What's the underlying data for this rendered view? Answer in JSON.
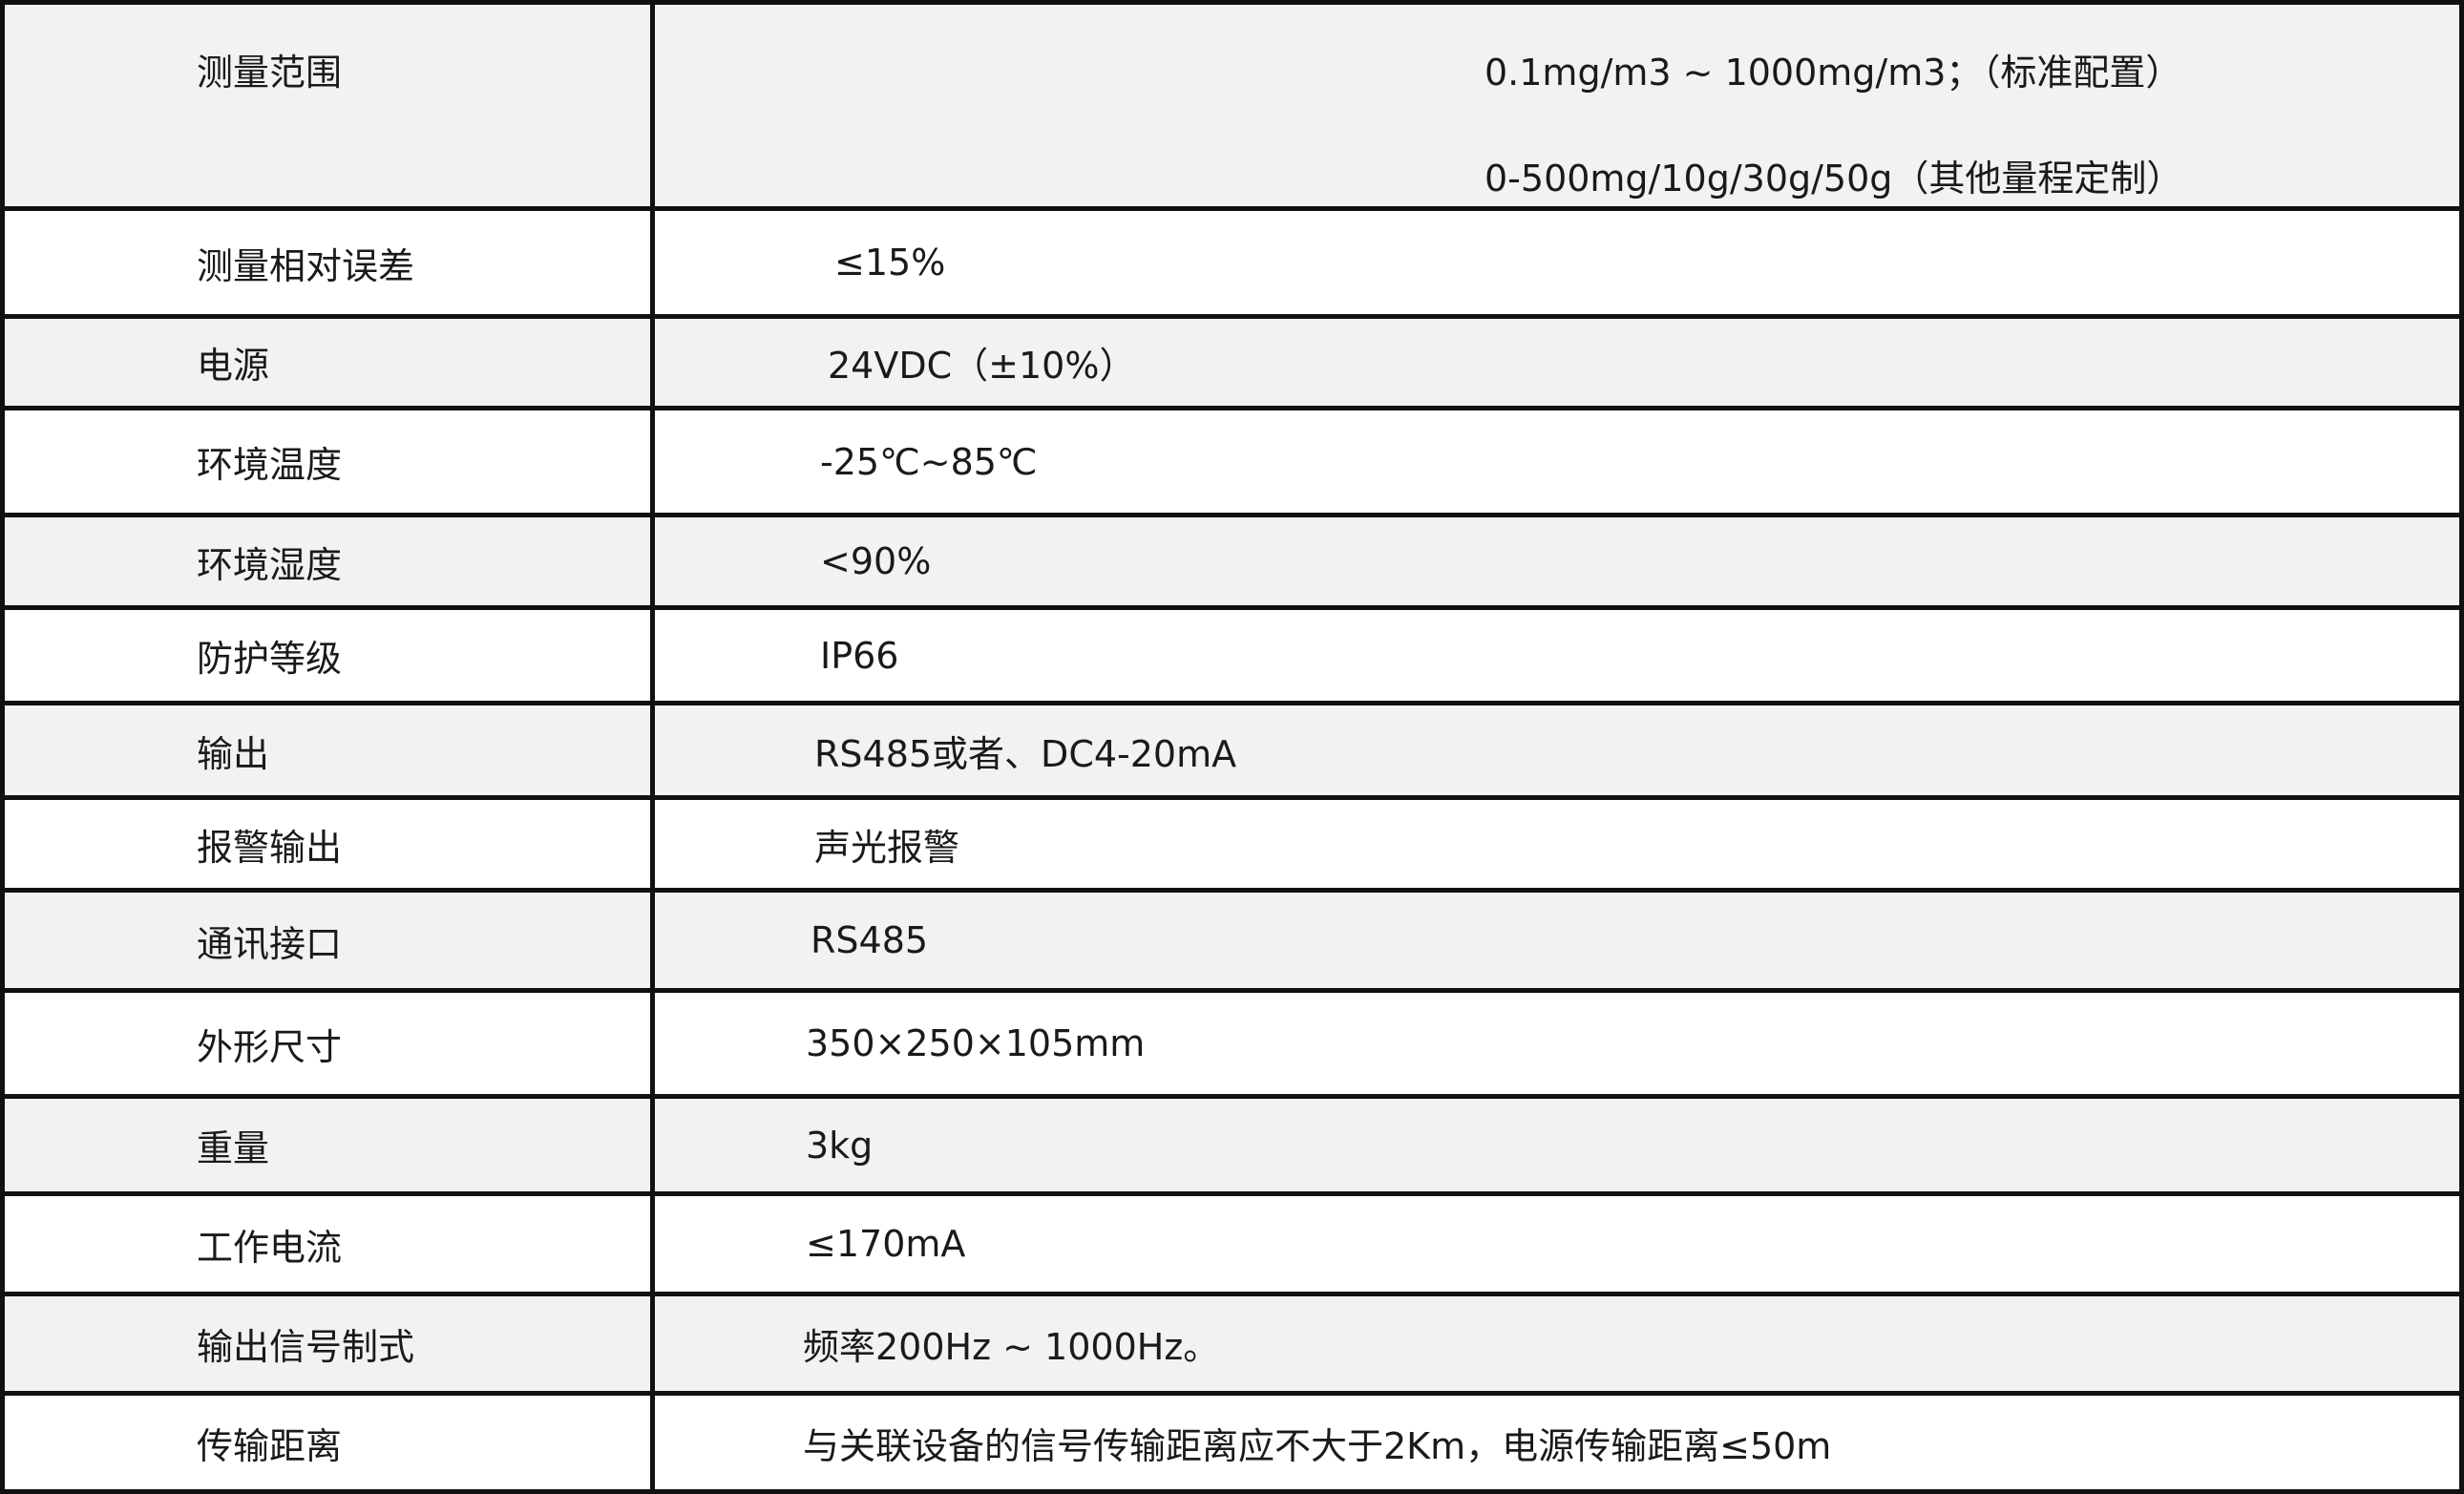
{
  "rows": [
    {
      "label": "测量范围",
      "values": [
        "0.1mg/m3 ~ 1000mg/m3；（标准配置）",
        "0-500mg/10g/30g/50g（其他量程定制）"
      ]
    },
    {
      "label": "测量相对误差",
      "values": [
        "≤15%"
      ]
    },
    {
      "label": "电源",
      "values": [
        "24VDC（±10%）"
      ]
    },
    {
      "label": "环境温度",
      "values": [
        "-25℃~85℃"
      ]
    },
    {
      "label": "环境湿度",
      "values": [
        "<90%"
      ]
    },
    {
      "label": "防护等级",
      "values": [
        "IP66"
      ]
    },
    {
      "label": "输出",
      "values": [
        "RS485或者、DC4-20mA"
      ]
    },
    {
      "label": "报警输出",
      "values": [
        "声光报警"
      ]
    },
    {
      "label": "通讯接口",
      "values": [
        "RS485"
      ]
    },
    {
      "label": "外形尺寸",
      "values": [
        "350×250×105mm"
      ]
    },
    {
      "label": "重量",
      "values": [
        "3kg"
      ]
    },
    {
      "label": "工作电流",
      "values": [
        "≤170mA"
      ]
    },
    {
      "label": "输出信号制式",
      "values": [
        "频率200Hz ~ 1000Hz。"
      ]
    },
    {
      "label": "传输距离",
      "values": [
        "与关联设备的信号传输距离应不大于2Km，电源传输距离≤50m"
      ]
    }
  ],
  "colors": {
    "row_alt": "#f2f2f2",
    "row": "#ffffff",
    "border": "#111111"
  }
}
